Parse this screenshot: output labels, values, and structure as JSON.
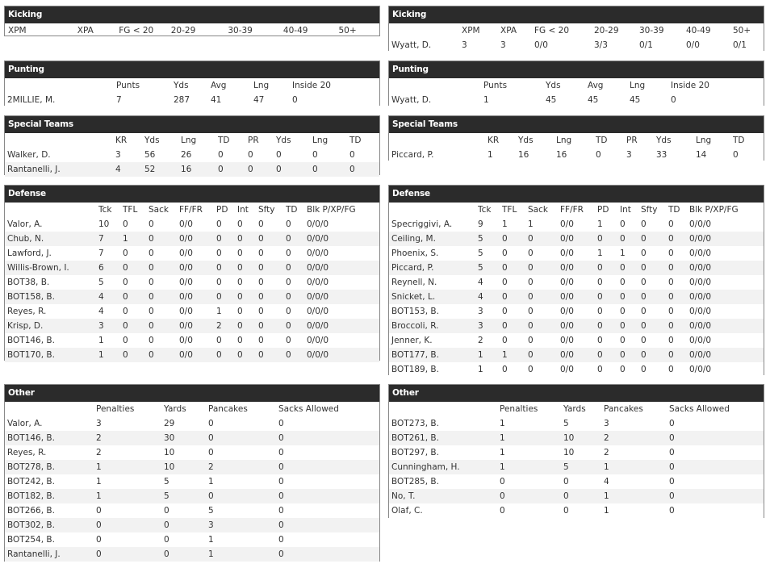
{
  "left": {
    "kicking": {
      "title": "Kicking",
      "headers": [
        "XPM",
        "XPA",
        "FG < 20",
        "20-29",
        "30-39",
        "40-49",
        "50+"
      ],
      "rows": []
    },
    "punting": {
      "title": "Punting",
      "headers": [
        "",
        "Punts",
        "Yds",
        "Avg",
        "Lng",
        "Inside 20"
      ],
      "rows": [
        [
          "2MILLIE, M.",
          "7",
          "287",
          "41",
          "47",
          "0"
        ]
      ]
    },
    "special_teams": {
      "title": "Special Teams",
      "headers": [
        "",
        "KR",
        "Yds",
        "Lng",
        "TD",
        "PR",
        "Yds",
        "Lng",
        "TD"
      ],
      "rows": [
        [
          "Walker, D.",
          "3",
          "56",
          "26",
          "0",
          "0",
          "0",
          "0",
          "0"
        ],
        [
          "Rantanelli, J.",
          "4",
          "52",
          "16",
          "0",
          "0",
          "0",
          "0",
          "0"
        ]
      ]
    },
    "defense": {
      "title": "Defense",
      "headers": [
        "",
        "Tck",
        "TFL",
        "Sack",
        "FF/FR",
        "PD",
        "Int",
        "Sfty",
        "TD",
        "Blk P/XP/FG"
      ],
      "rows": [
        [
          "Valor, A.",
          "10",
          "0",
          "0",
          "0/0",
          "0",
          "0",
          "0",
          "0",
          "0/0/0"
        ],
        [
          "Chub, N.",
          "7",
          "1",
          "0",
          "0/0",
          "0",
          "0",
          "0",
          "0",
          "0/0/0"
        ],
        [
          "Lawford, J.",
          "7",
          "0",
          "0",
          "0/0",
          "0",
          "0",
          "0",
          "0",
          "0/0/0"
        ],
        [
          "Willis-Brown, I.",
          "6",
          "0",
          "0",
          "0/0",
          "0",
          "0",
          "0",
          "0",
          "0/0/0"
        ],
        [
          "BOT38, B.",
          "5",
          "0",
          "0",
          "0/0",
          "0",
          "0",
          "0",
          "0",
          "0/0/0"
        ],
        [
          "BOT158, B.",
          "4",
          "0",
          "0",
          "0/0",
          "0",
          "0",
          "0",
          "0",
          "0/0/0"
        ],
        [
          "Reyes, R.",
          "4",
          "0",
          "0",
          "0/0",
          "1",
          "0",
          "0",
          "0",
          "0/0/0"
        ],
        [
          "Krisp, D.",
          "3",
          "0",
          "0",
          "0/0",
          "2",
          "0",
          "0",
          "0",
          "0/0/0"
        ],
        [
          "BOT146, B.",
          "1",
          "0",
          "0",
          "0/0",
          "0",
          "0",
          "0",
          "0",
          "0/0/0"
        ],
        [
          "BOT170, B.",
          "1",
          "0",
          "0",
          "0/0",
          "0",
          "0",
          "0",
          "0",
          "0/0/0"
        ]
      ]
    },
    "other": {
      "title": "Other",
      "headers": [
        "",
        "Penalties",
        "Yards",
        "Pancakes",
        "Sacks Allowed"
      ],
      "rows": [
        [
          "Valor, A.",
          "3",
          "29",
          "0",
          "0"
        ],
        [
          "BOT146, B.",
          "2",
          "30",
          "0",
          "0"
        ],
        [
          "Reyes, R.",
          "2",
          "10",
          "0",
          "0"
        ],
        [
          "BOT278, B.",
          "1",
          "10",
          "2",
          "0"
        ],
        [
          "BOT242, B.",
          "1",
          "5",
          "1",
          "0"
        ],
        [
          "BOT182, B.",
          "1",
          "5",
          "0",
          "0"
        ],
        [
          "BOT266, B.",
          "0",
          "0",
          "5",
          "0"
        ],
        [
          "BOT302, B.",
          "0",
          "0",
          "3",
          "0"
        ],
        [
          "BOT254, B.",
          "0",
          "0",
          "1",
          "0"
        ],
        [
          "Rantanelli, J.",
          "0",
          "0",
          "1",
          "0"
        ]
      ]
    }
  },
  "right": {
    "kicking": {
      "title": "Kicking",
      "headers": [
        "",
        "XPM",
        "XPA",
        "FG < 20",
        "20-29",
        "30-39",
        "40-49",
        "50+"
      ],
      "rows": [
        [
          "Wyatt, D.",
          "3",
          "3",
          "0/0",
          "3/3",
          "0/1",
          "0/0",
          "0/1"
        ]
      ]
    },
    "punting": {
      "title": "Punting",
      "headers": [
        "",
        "Punts",
        "Yds",
        "Avg",
        "Lng",
        "Inside 20"
      ],
      "rows": [
        [
          "Wyatt, D.",
          "1",
          "45",
          "45",
          "45",
          "0"
        ]
      ]
    },
    "special_teams": {
      "title": "Special Teams",
      "headers": [
        "",
        "KR",
        "Yds",
        "Lng",
        "TD",
        "PR",
        "Yds",
        "Lng",
        "TD"
      ],
      "rows": [
        [
          "Piccard, P.",
          "1",
          "16",
          "16",
          "0",
          "3",
          "33",
          "14",
          "0"
        ]
      ]
    },
    "defense": {
      "title": "Defense",
      "headers": [
        "",
        "Tck",
        "TFL",
        "Sack",
        "FF/FR",
        "PD",
        "Int",
        "Sfty",
        "TD",
        "Blk P/XP/FG"
      ],
      "rows": [
        [
          "Specriggivi, A.",
          "9",
          "1",
          "1",
          "0/0",
          "1",
          "0",
          "0",
          "0",
          "0/0/0"
        ],
        [
          "Ceiling, M.",
          "5",
          "0",
          "0",
          "0/0",
          "0",
          "0",
          "0",
          "0",
          "0/0/0"
        ],
        [
          "Phoenix, S.",
          "5",
          "0",
          "0",
          "0/0",
          "1",
          "1",
          "0",
          "0",
          "0/0/0"
        ],
        [
          "Piccard, P.",
          "5",
          "0",
          "0",
          "0/0",
          "0",
          "0",
          "0",
          "0",
          "0/0/0"
        ],
        [
          "Reynell, N.",
          "4",
          "0",
          "0",
          "0/0",
          "0",
          "0",
          "0",
          "0",
          "0/0/0"
        ],
        [
          "Snicket, L.",
          "4",
          "0",
          "0",
          "0/0",
          "0",
          "0",
          "0",
          "0",
          "0/0/0"
        ],
        [
          "BOT153, B.",
          "3",
          "0",
          "0",
          "0/0",
          "0",
          "0",
          "0",
          "0",
          "0/0/0"
        ],
        [
          "Broccoli, R.",
          "3",
          "0",
          "0",
          "0/0",
          "0",
          "0",
          "0",
          "0",
          "0/0/0"
        ],
        [
          "Jenner, K.",
          "2",
          "0",
          "0",
          "0/0",
          "0",
          "0",
          "0",
          "0",
          "0/0/0"
        ],
        [
          "BOT177, B.",
          "1",
          "1",
          "0",
          "0/0",
          "0",
          "0",
          "0",
          "0",
          "0/0/0"
        ],
        [
          "BOT189, B.",
          "1",
          "0",
          "0",
          "0/0",
          "0",
          "0",
          "0",
          "0",
          "0/0/0"
        ]
      ]
    },
    "other": {
      "title": "Other",
      "headers": [
        "",
        "Penalties",
        "Yards",
        "Pancakes",
        "Sacks Allowed"
      ],
      "rows": [
        [
          "BOT273, B.",
          "1",
          "5",
          "3",
          "0"
        ],
        [
          "BOT261, B.",
          "1",
          "10",
          "2",
          "0"
        ],
        [
          "BOT297, B.",
          "1",
          "10",
          "2",
          "0"
        ],
        [
          "Cunningham, H.",
          "1",
          "5",
          "1",
          "0"
        ],
        [
          "BOT285, B.",
          "0",
          "0",
          "4",
          "0"
        ],
        [
          "No, T.",
          "0",
          "0",
          "1",
          "0"
        ],
        [
          "Olaf, C.",
          "0",
          "0",
          "1",
          "0"
        ]
      ]
    }
  }
}
